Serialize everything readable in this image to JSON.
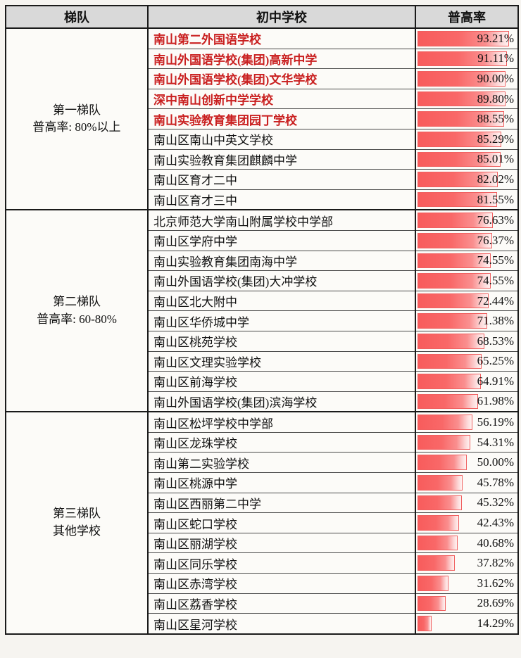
{
  "colors": {
    "bar_red": "#f85c5c",
    "bar_border": "#f06060",
    "highlight_text": "#c92020",
    "header_bg": "#d9d9d9",
    "grid_line": "#1a1a1a"
  },
  "chart_data": {
    "type": "table",
    "title": "",
    "columns": [
      "梯队",
      "初中学校",
      "普高率"
    ],
    "bar_max": 100,
    "legend_note": "红色数据条长度与普高率成正比，前五名学校名称以红色加粗显示",
    "tiers": [
      {
        "tier": "第一梯队",
        "tier_note": "普高率: 80%以上",
        "rows": [
          {
            "school": "南山第二外国语学校",
            "rate": 93.21,
            "rate_label": "93.21%",
            "highlight": true
          },
          {
            "school": "南山外国语学校(集团)高新中学",
            "rate": 91.11,
            "rate_label": "91.11%",
            "highlight": true
          },
          {
            "school": "南山外国语学校(集团)文华学校",
            "rate": 90.0,
            "rate_label": "90.00%",
            "highlight": true
          },
          {
            "school": "深中南山创新中学学校",
            "rate": 89.8,
            "rate_label": "89.80%",
            "highlight": true
          },
          {
            "school": "南山实验教育集团园丁学校",
            "rate": 88.55,
            "rate_label": "88.55%",
            "highlight": true
          },
          {
            "school": "南山区南山中英文学校",
            "rate": 85.29,
            "rate_label": "85.29%",
            "highlight": false
          },
          {
            "school": "南山实验教育集团麒麟中学",
            "rate": 85.01,
            "rate_label": "85.01%",
            "highlight": false
          },
          {
            "school": "南山区育才二中",
            "rate": 82.02,
            "rate_label": "82.02%",
            "highlight": false
          },
          {
            "school": "南山区育才三中",
            "rate": 81.55,
            "rate_label": "81.55%",
            "highlight": false
          }
        ]
      },
      {
        "tier": "第二梯队",
        "tier_note": "普高率: 60-80%",
        "rows": [
          {
            "school": "北京师范大学南山附属学校中学部",
            "rate": 76.63,
            "rate_label": "76.63%",
            "highlight": false
          },
          {
            "school": "南山区学府中学",
            "rate": 76.37,
            "rate_label": "76.37%",
            "highlight": false
          },
          {
            "school": "南山实验教育集团南海中学",
            "rate": 74.55,
            "rate_label": "74.55%",
            "highlight": false
          },
          {
            "school": "南山外国语学校(集团)大冲学校",
            "rate": 74.55,
            "rate_label": "74.55%",
            "highlight": false
          },
          {
            "school": "南山区北大附中",
            "rate": 72.44,
            "rate_label": "72.44%",
            "highlight": false
          },
          {
            "school": "南山区华侨城中学",
            "rate": 71.38,
            "rate_label": "71.38%",
            "highlight": false
          },
          {
            "school": "南山区桃苑学校",
            "rate": 68.53,
            "rate_label": "68.53%",
            "highlight": false
          },
          {
            "school": "南山区文理实验学校",
            "rate": 65.25,
            "rate_label": "65.25%",
            "highlight": false
          },
          {
            "school": "南山区前海学校",
            "rate": 64.91,
            "rate_label": "64.91%",
            "highlight": false
          },
          {
            "school": "南山外国语学校(集团)滨海学校",
            "rate": 61.98,
            "rate_label": "61.98%",
            "highlight": false
          }
        ]
      },
      {
        "tier": "第三梯队",
        "tier_note": "其他学校",
        "rows": [
          {
            "school": "南山区松坪学校中学部",
            "rate": 56.19,
            "rate_label": "56.19%",
            "highlight": false
          },
          {
            "school": "南山区龙珠学校",
            "rate": 54.31,
            "rate_label": "54.31%",
            "highlight": false
          },
          {
            "school": "南山第二实验学校",
            "rate": 50.0,
            "rate_label": "50.00%",
            "highlight": false
          },
          {
            "school": "南山区桃源中学",
            "rate": 45.78,
            "rate_label": "45.78%",
            "highlight": false
          },
          {
            "school": "南山区西丽第二中学",
            "rate": 45.32,
            "rate_label": "45.32%",
            "highlight": false
          },
          {
            "school": "南山区蛇口学校",
            "rate": 42.43,
            "rate_label": "42.43%",
            "highlight": false
          },
          {
            "school": "南山区丽湖学校",
            "rate": 40.68,
            "rate_label": "40.68%",
            "highlight": false
          },
          {
            "school": "南山区同乐学校",
            "rate": 37.82,
            "rate_label": "37.82%",
            "highlight": false
          },
          {
            "school": "南山区赤湾学校",
            "rate": 31.62,
            "rate_label": "31.62%",
            "highlight": false
          },
          {
            "school": "南山区荔香学校",
            "rate": 28.69,
            "rate_label": "28.69%",
            "highlight": false
          },
          {
            "school": "南山区星河学校",
            "rate": 14.29,
            "rate_label": "14.29%",
            "highlight": false
          }
        ]
      }
    ]
  }
}
